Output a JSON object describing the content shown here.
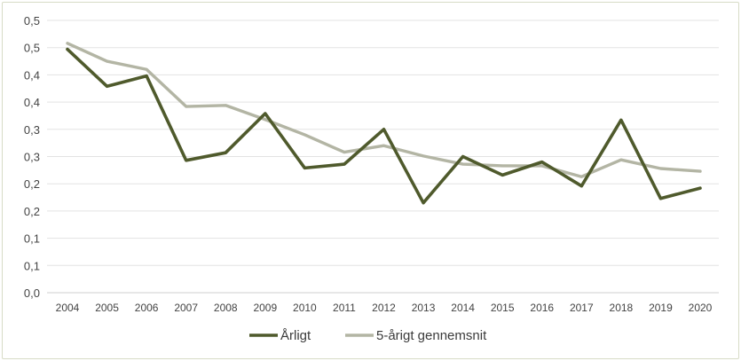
{
  "chart_data": {
    "type": "line",
    "title": "",
    "xlabel": "",
    "ylabel": "",
    "categories": [
      "2004",
      "2005",
      "2006",
      "2007",
      "2008",
      "2009",
      "2010",
      "2011",
      "2012",
      "2013",
      "2014",
      "2015",
      "2016",
      "2017",
      "2018",
      "2019",
      "2020"
    ],
    "ylim": [
      0.0,
      0.5
    ],
    "y_tick_values": [
      0.0,
      0.05,
      0.1,
      0.15,
      0.2,
      0.25,
      0.3,
      0.35,
      0.4,
      0.45,
      0.5
    ],
    "y_tick_labels": [
      "0,0",
      "0,1",
      "0,1",
      "0,2",
      "0,2",
      "0,3",
      "0,3",
      "0,4",
      "0,4",
      "0,5",
      "0,5"
    ],
    "grid": "horizontal",
    "legend_position": "bottom",
    "series": [
      {
        "name": "Årligt",
        "color": "#4f5a2c",
        "values": [
          0.447,
          0.379,
          0.398,
          0.243,
          0.257,
          0.329,
          0.229,
          0.236,
          0.3,
          0.165,
          0.25,
          0.216,
          0.24,
          0.196,
          0.317,
          0.173,
          0.192
        ]
      },
      {
        "name": "5-årigt gennemsnit",
        "color": "#b3b5a4",
        "values": [
          0.458,
          0.425,
          0.41,
          0.342,
          0.344,
          0.318,
          0.29,
          0.258,
          0.27,
          0.251,
          0.236,
          0.233,
          0.233,
          0.213,
          0.244,
          0.228,
          0.223
        ]
      }
    ]
  }
}
